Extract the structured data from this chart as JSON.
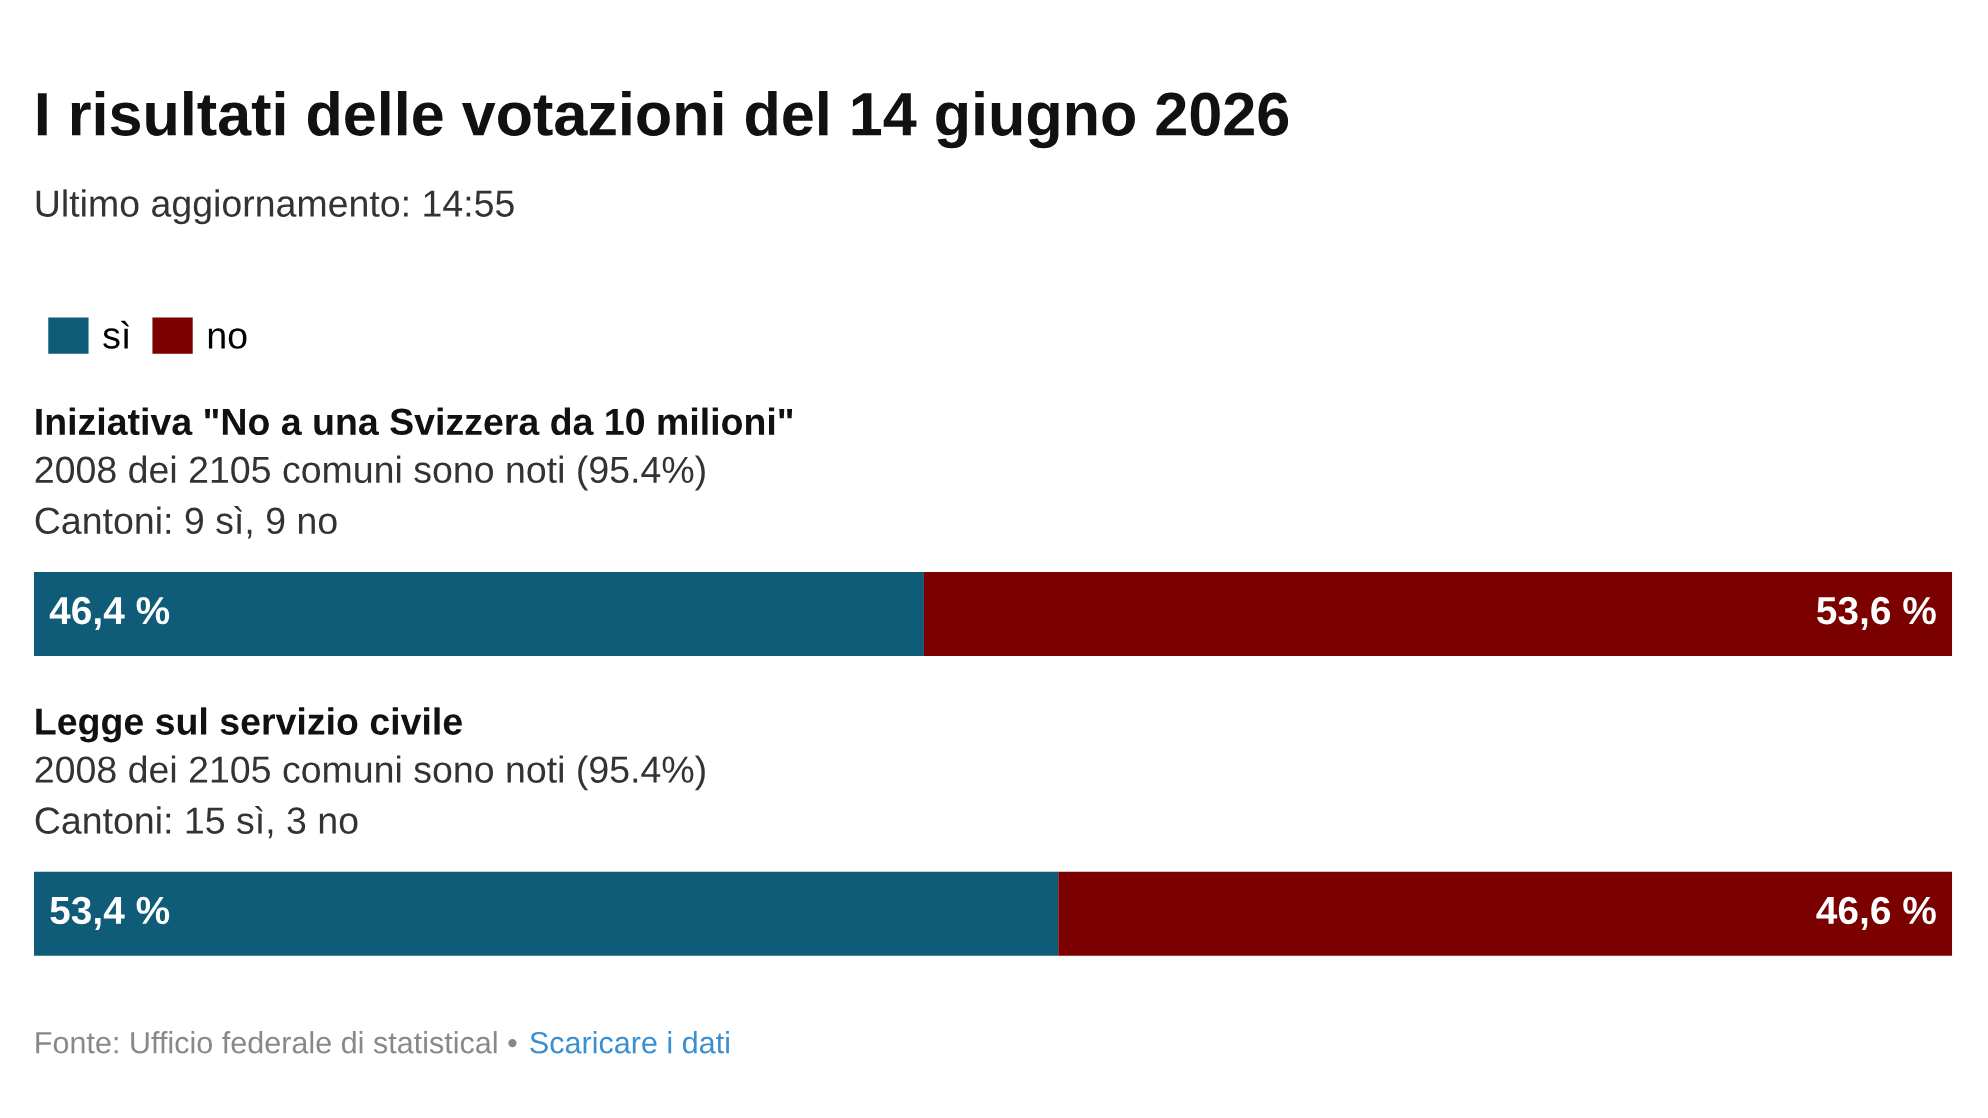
{
  "chart_data": {
    "type": "bar",
    "orientation": "horizontal",
    "stacked": true,
    "title": "I risultati delle votazioni del 14 giugno 2026",
    "subtitle": "Ultimo aggiornamento: 14:55",
    "categories": [
      "Iniziativa \"No a una Svizzera da 10 milioni\"\n2008 dei 2105 comuni sono noti (95.4%)\nCantoni: 9 sì, 9 no",
      "Legge sul servizio civile\n2008 dei 2105 comuni sono noti (95.4%)\nCantoni: 15 sì, 3 no"
    ],
    "series": [
      {
        "name": "sì",
        "color": "#0e5c78",
        "values": [
          46.4,
          53.4
        ],
        "value_labels": [
          "46,4 %",
          "53,4 %"
        ]
      },
      {
        "name": "no",
        "color": "#7b0000",
        "values": [
          53.6,
          46.6
        ],
        "value_labels": [
          "53,6 %",
          "46,6 %"
        ]
      }
    ],
    "xlim": [
      0,
      100
    ],
    "legend": "top left",
    "annotations": [
      "Fonte: Ufficio federale di statistical •",
      "Scaricare i dati"
    ]
  }
}
